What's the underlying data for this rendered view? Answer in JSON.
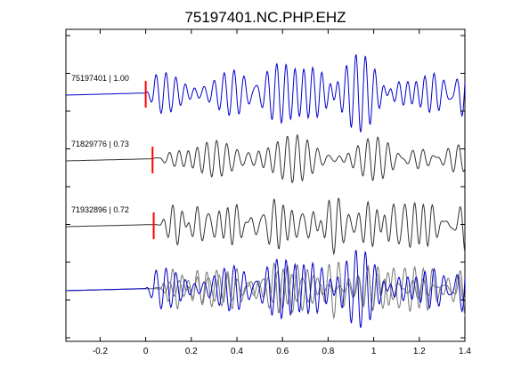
{
  "chart_data": {
    "type": "line",
    "title": "75197401.NC.PHP.EHZ",
    "xlabel": "",
    "ylabel": "",
    "xlim": [
      -0.35,
      1.4
    ],
    "x_ticks": [
      -0.2,
      0,
      0.2,
      0.4,
      0.6,
      0.8,
      1,
      1.2,
      1.4
    ],
    "x_tick_labels": [
      "-0.2",
      "0",
      "0.2",
      "0.4",
      "0.6",
      "0.8",
      "1",
      "1.2",
      "1.4"
    ],
    "grid": false,
    "colors": {
      "primary": "#0000cc",
      "secondary": "#333333",
      "overlay": "#777777",
      "pick": "#ff0000"
    },
    "traces": [
      {
        "label": "75197401 | 1.00",
        "id": "75197401",
        "cc": 1.0,
        "color": "#0000cc",
        "pick_time": 0.0,
        "onset": 0.0,
        "seed": 1,
        "amp": 1.0
      },
      {
        "label": "71829776 | 0.73",
        "id": "71829776",
        "cc": 0.73,
        "color": "#333333",
        "pick_time": 0.03,
        "onset": 0.03,
        "seed": 2,
        "amp": 0.75
      },
      {
        "label": "71932896 | 0.72",
        "id": "71932896",
        "cc": 0.72,
        "color": "#333333",
        "pick_time": 0.035,
        "onset": 0.035,
        "seed": 3,
        "amp": 0.85
      }
    ],
    "stack": {
      "traces": [
        0,
        1,
        2
      ]
    }
  }
}
